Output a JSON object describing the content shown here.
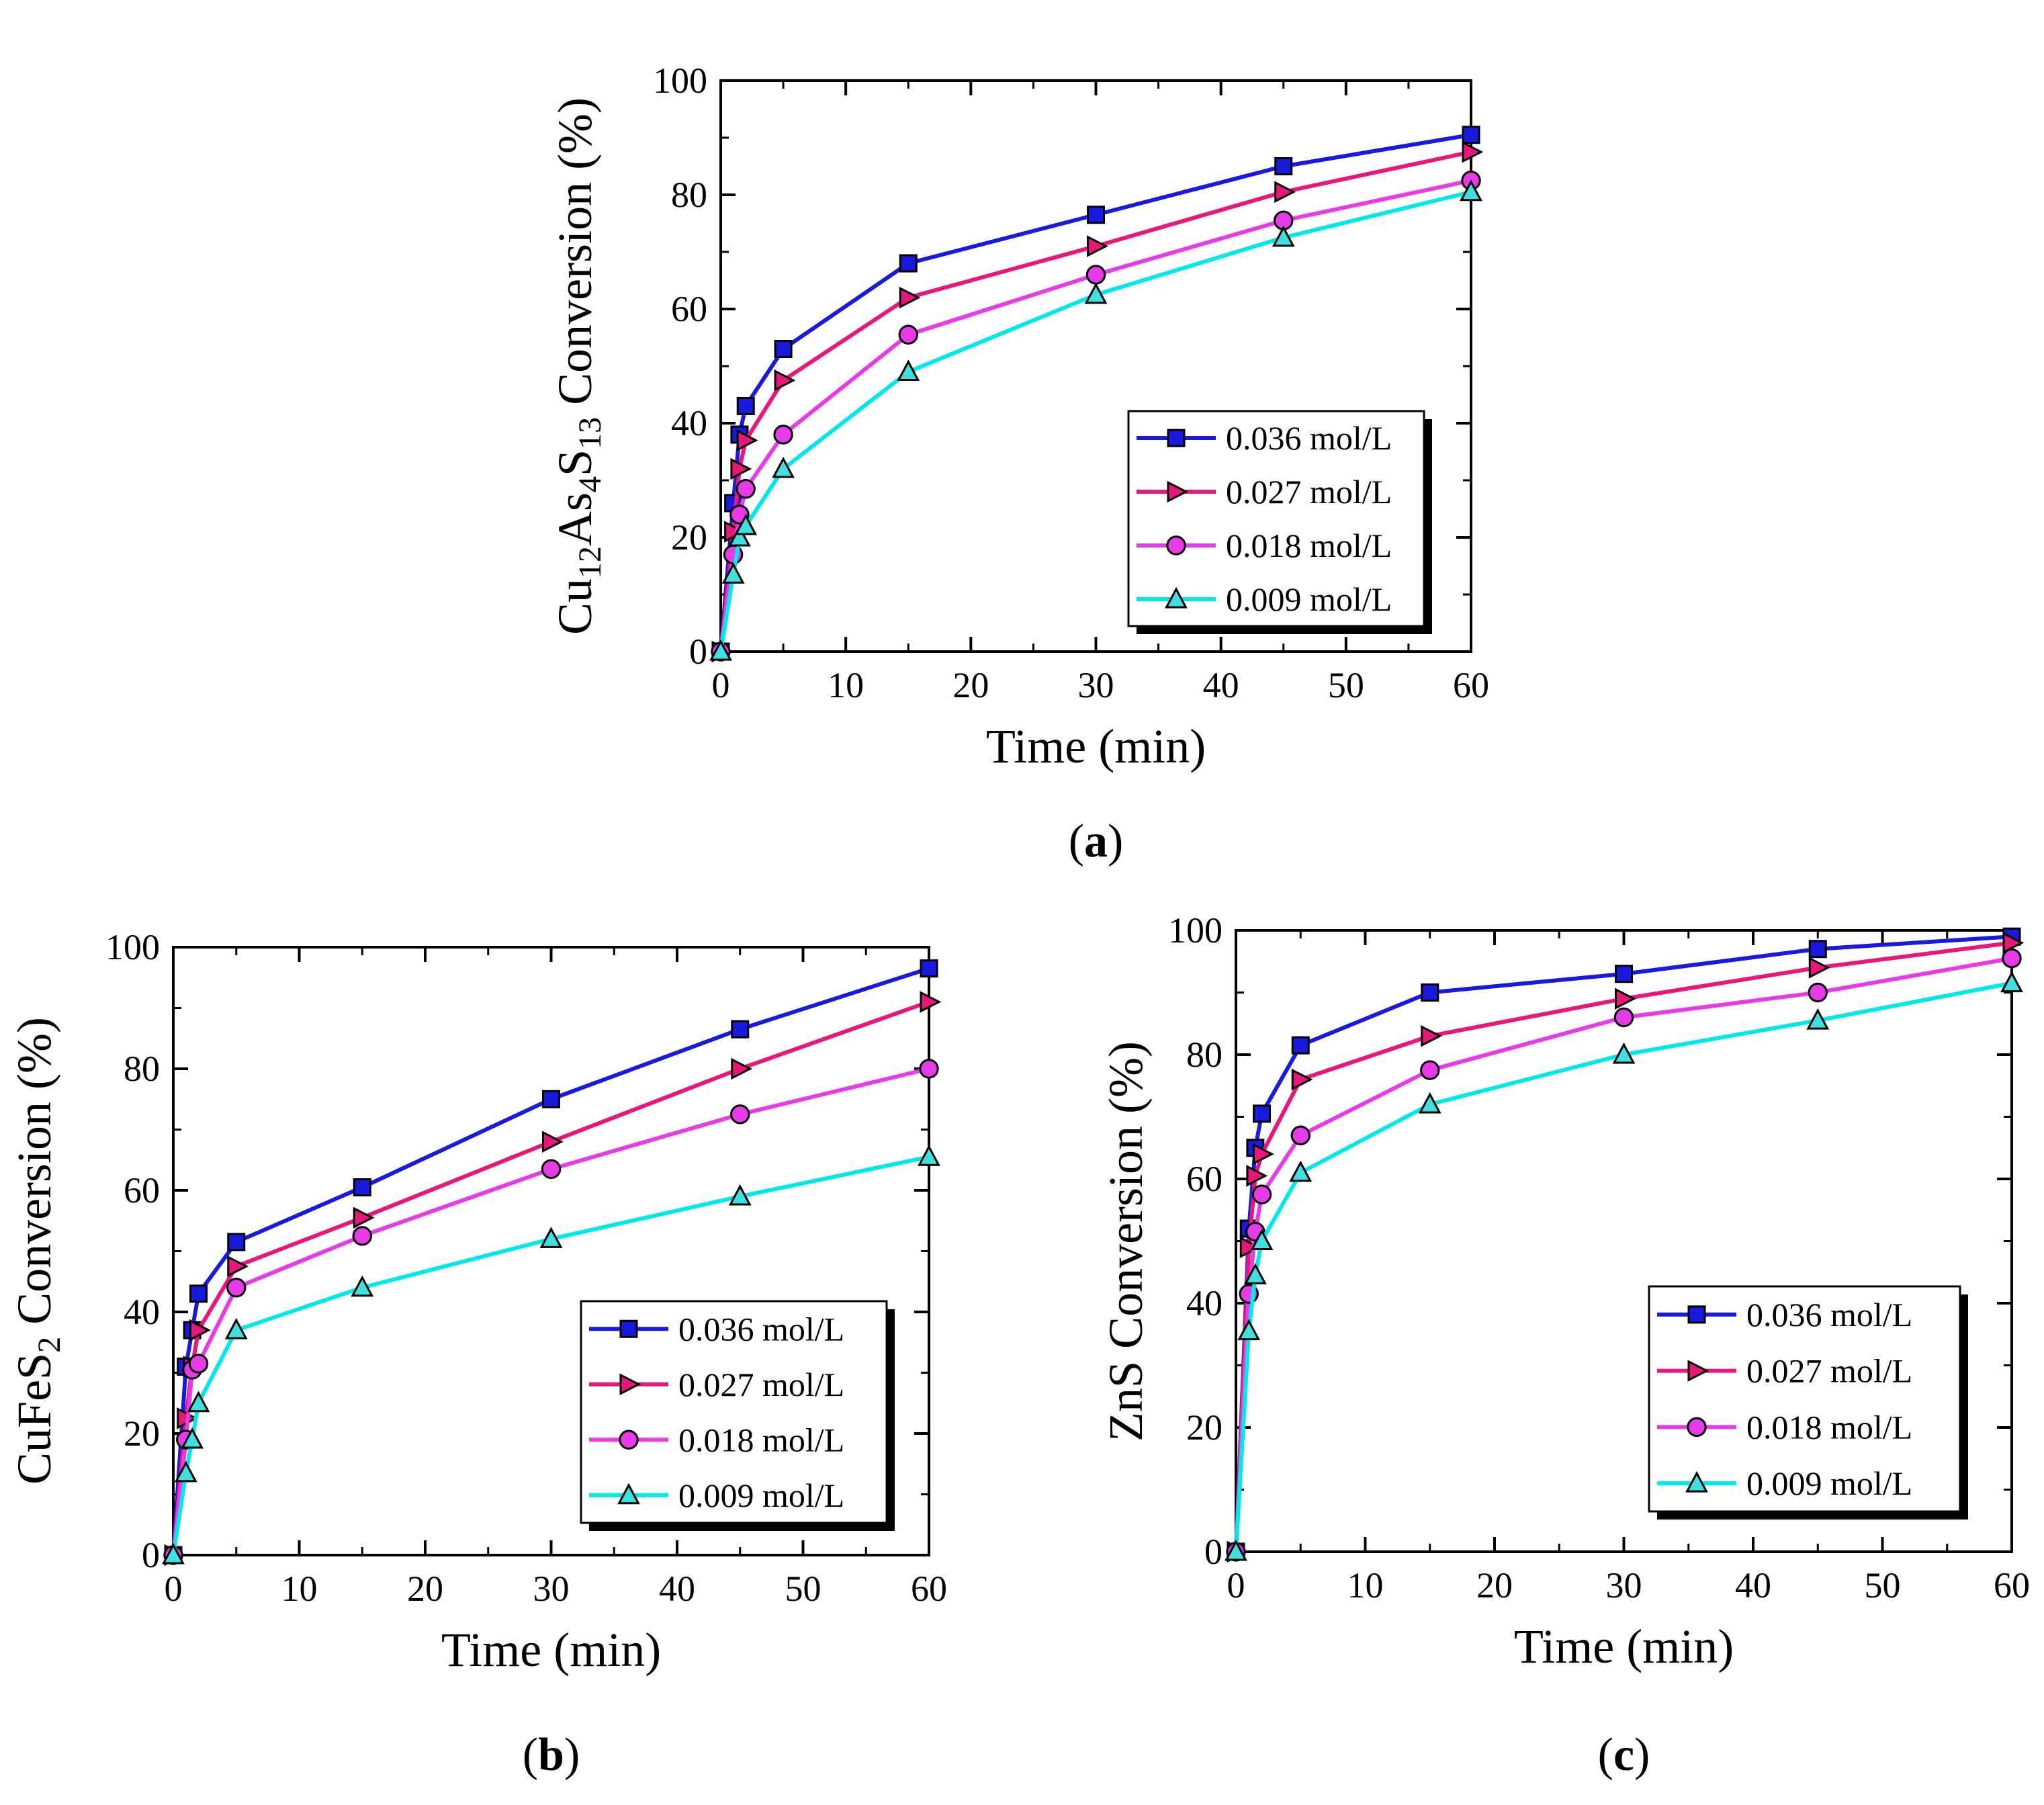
{
  "chart_data": [
    {
      "type": "line",
      "panel": "a",
      "panel_label": "(a)",
      "ylabel_base": "Cu",
      "ylabel_parts": [
        {
          "t": "Cu",
          "sub": false
        },
        {
          "t": "12",
          "sub": true
        },
        {
          "t": "As",
          "sub": false
        },
        {
          "t": "4",
          "sub": true
        },
        {
          "t": "S",
          "sub": false
        },
        {
          "t": "13",
          "sub": true
        },
        {
          "t": " Conversion (%)",
          "sub": false
        }
      ],
      "xlabel": "Time (min)",
      "xlim": [
        0,
        60
      ],
      "ylim": [
        0,
        100
      ],
      "xticks": [
        0,
        10,
        20,
        30,
        40,
        50,
        60
      ],
      "yticks": [
        0,
        20,
        40,
        60,
        80,
        100
      ],
      "x": [
        0,
        1,
        1.5,
        2,
        5,
        15,
        30,
        45,
        60
      ],
      "series": [
        {
          "name": "0.036 mol/L",
          "marker": "square",
          "color": "#1a1adf",
          "fill": "#1a1adf",
          "values": [
            0,
            26,
            38,
            43,
            53,
            68,
            76.5,
            85,
            90.5
          ]
        },
        {
          "name": "0.027 mol/L",
          "marker": "triangle-right",
          "color": "#e8187a",
          "fill": "#e8187a",
          "values": [
            0,
            21,
            32,
            37,
            47.5,
            62,
            71,
            80.5,
            87.5
          ]
        },
        {
          "name": "0.018 mol/L",
          "marker": "circle",
          "color": "#e83be8",
          "fill": "#e83be8",
          "values": [
            0,
            17,
            24,
            28.5,
            38,
            55.5,
            66,
            75.5,
            82.5
          ]
        },
        {
          "name": "0.009 mol/L",
          "marker": "triangle-up",
          "color": "#00e8e8",
          "fill": "#40e0e0",
          "values": [
            0,
            13.5,
            20,
            22,
            32,
            49,
            62.5,
            72.5,
            80.5
          ]
        }
      ],
      "legend_placement": "lower-right"
    },
    {
      "type": "line",
      "panel": "b",
      "panel_label": "(b)",
      "ylabel_parts": [
        {
          "t": "CuFeS",
          "sub": false
        },
        {
          "t": "2",
          "sub": true
        },
        {
          "t": " Conversion (%)",
          "sub": false
        }
      ],
      "xlabel": "Time (min)",
      "xlim": [
        0,
        60
      ],
      "ylim": [
        0,
        100
      ],
      "xticks": [
        0,
        10,
        20,
        30,
        40,
        50,
        60
      ],
      "yticks": [
        0,
        20,
        40,
        60,
        80,
        100
      ],
      "x": [
        0,
        1,
        1.5,
        2,
        5,
        15,
        30,
        45,
        60
      ],
      "series": [
        {
          "name": "0.036 mol/L",
          "marker": "square",
          "color": "#1a1adf",
          "fill": "#1a1adf",
          "values": [
            0,
            31,
            37,
            43,
            51.5,
            60.5,
            75,
            86.5,
            96.5
          ]
        },
        {
          "name": "0.027 mol/L",
          "marker": "triangle-right",
          "color": "#e8187a",
          "fill": "#e8187a",
          "values": [
            0,
            22.5,
            31,
            37,
            47.5,
            55.5,
            68,
            80,
            91
          ]
        },
        {
          "name": "0.018 mol/L",
          "marker": "circle",
          "color": "#e83be8",
          "fill": "#e83be8",
          "values": [
            0,
            19,
            30.5,
            31.5,
            44,
            52.5,
            63.5,
            72.5,
            80
          ]
        },
        {
          "name": "0.009 mol/L",
          "marker": "triangle-up",
          "color": "#00e8e8",
          "fill": "#40e0e0",
          "values": [
            0,
            13.5,
            19,
            25,
            37,
            44,
            52,
            59,
            65.5
          ]
        }
      ],
      "legend_placement": "lower-right"
    },
    {
      "type": "line",
      "panel": "c",
      "panel_label": "(c)",
      "ylabel_parts": [
        {
          "t": "ZnS Conversion (%)",
          "sub": false
        }
      ],
      "xlabel": "Time (min)",
      "xlim": [
        0,
        60
      ],
      "ylim": [
        0,
        100
      ],
      "xticks": [
        0,
        10,
        20,
        30,
        40,
        50,
        60
      ],
      "yticks": [
        0,
        20,
        40,
        60,
        80,
        100
      ],
      "x": [
        0,
        1,
        1.5,
        2,
        5,
        15,
        30,
        45,
        60
      ],
      "series": [
        {
          "name": "0.036 mol/L",
          "marker": "square",
          "color": "#1a1adf",
          "fill": "#1a1adf",
          "values": [
            0,
            52,
            65,
            70.5,
            81.5,
            90,
            93,
            97,
            99
          ]
        },
        {
          "name": "0.027 mol/L",
          "marker": "triangle-right",
          "color": "#e8187a",
          "fill": "#e8187a",
          "values": [
            0,
            49,
            60.5,
            64,
            76,
            83,
            89,
            94,
            98
          ]
        },
        {
          "name": "0.018 mol/L",
          "marker": "circle",
          "color": "#e83be8",
          "fill": "#e83be8",
          "values": [
            0,
            41.5,
            51.5,
            57.5,
            67,
            77.5,
            86,
            90,
            95.5
          ]
        },
        {
          "name": "0.009 mol/L",
          "marker": "triangle-up",
          "color": "#00e8e8",
          "fill": "#40e0e0",
          "values": [
            0,
            35.5,
            44.5,
            50,
            61,
            72,
            80,
            85.5,
            91.5
          ]
        }
      ],
      "legend_placement": "lower-right"
    }
  ]
}
